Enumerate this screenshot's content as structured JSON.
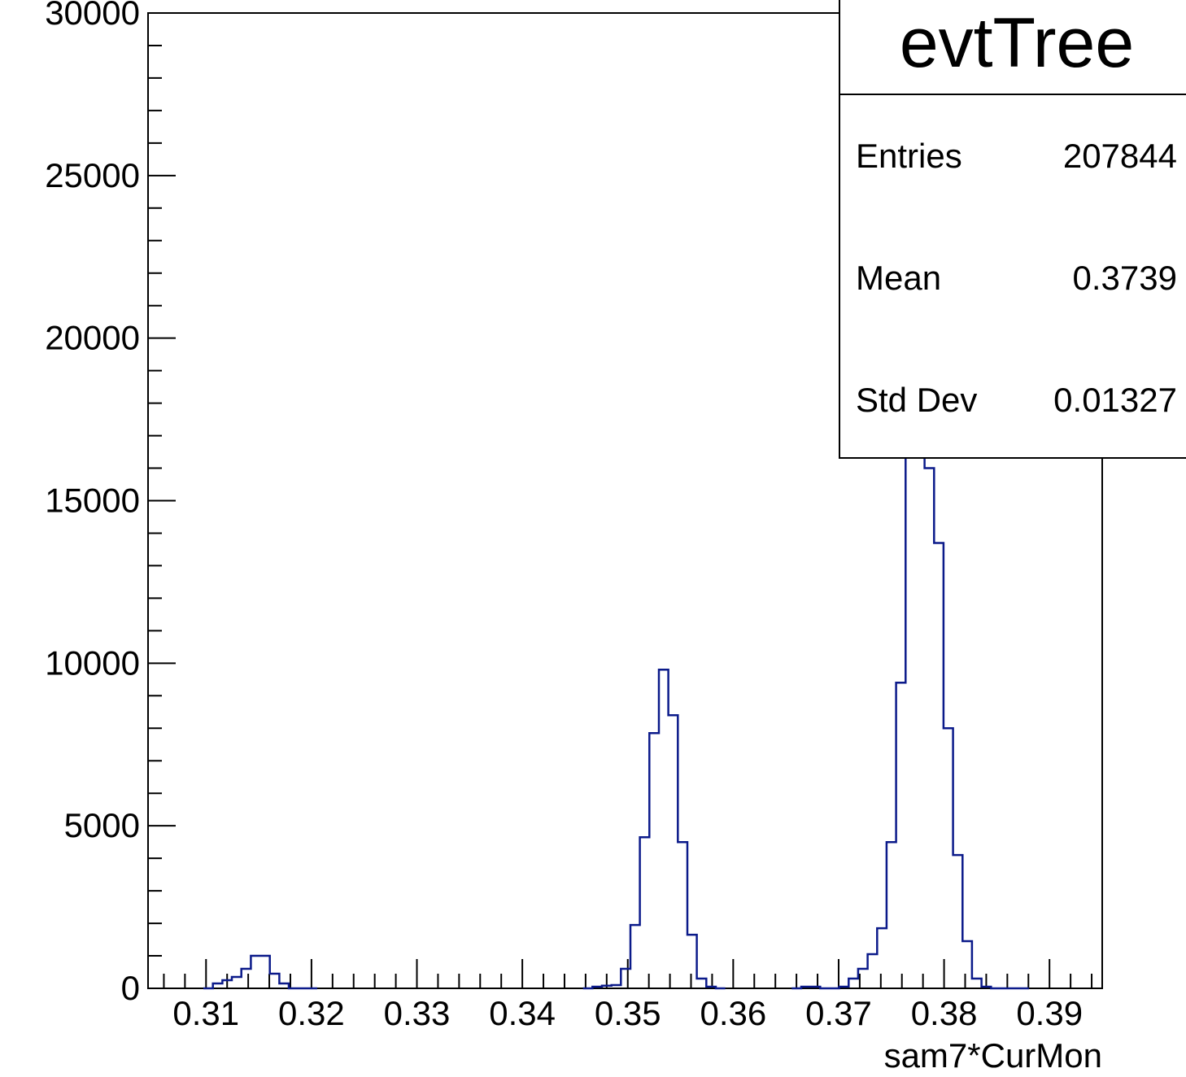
{
  "chart_data": {
    "type": "histogram",
    "title": "evtTree",
    "xlabel": "sam7*CurMon",
    "ylabel": "",
    "xlim": [
      0.3045,
      0.395
    ],
    "ylim": [
      0,
      30000
    ],
    "x_ticks": [
      "0.31",
      "0.32",
      "0.33",
      "0.34",
      "0.35",
      "0.36",
      "0.37",
      "0.38",
      "0.39"
    ],
    "y_ticks": [
      "0",
      "5000",
      "10000",
      "15000",
      "20000",
      "25000",
      "30000"
    ],
    "line_color": "#0b1a8a",
    "grid": false,
    "bin_width": 0.0009,
    "x": [
      0.3102,
      0.3111,
      0.312,
      0.3129,
      0.3138,
      0.3147,
      0.3156,
      0.3165,
      0.3174,
      0.3183,
      0.3192,
      0.3201,
      0.3462,
      0.3471,
      0.348,
      0.3489,
      0.3498,
      0.3507,
      0.3516,
      0.3525,
      0.3534,
      0.3543,
      0.3552,
      0.3561,
      0.357,
      0.3579,
      0.3588,
      0.366,
      0.3669,
      0.3678,
      0.3687,
      0.3696,
      0.3705,
      0.3714,
      0.3723,
      0.3732,
      0.3741,
      0.375,
      0.3759,
      0.3768,
      0.3777,
      0.3786,
      0.3795,
      0.3804,
      0.3813,
      0.3822,
      0.3831,
      0.384,
      0.3849,
      0.3858,
      0.3867,
      0.3876
    ],
    "values": [
      0,
      150,
      250,
      350,
      600,
      1000,
      1000,
      450,
      150,
      0,
      0,
      0,
      0,
      50,
      80,
      100,
      600,
      1950,
      4650,
      7850,
      9800,
      8400,
      4500,
      1650,
      300,
      50,
      0,
      0,
      50,
      50,
      0,
      0,
      50,
      300,
      600,
      1050,
      1850,
      4500,
      9400,
      17000,
      17500,
      16000,
      13700,
      8000,
      4100,
      1450,
      300,
      50,
      0,
      0,
      0,
      0
    ],
    "stats": {
      "title": "evtTree",
      "rows": [
        {
          "label": "Entries",
          "value": "207844"
        },
        {
          "label": "Mean",
          "value": "0.3739"
        },
        {
          "label": "Std Dev",
          "value": "0.01327"
        }
      ]
    }
  }
}
